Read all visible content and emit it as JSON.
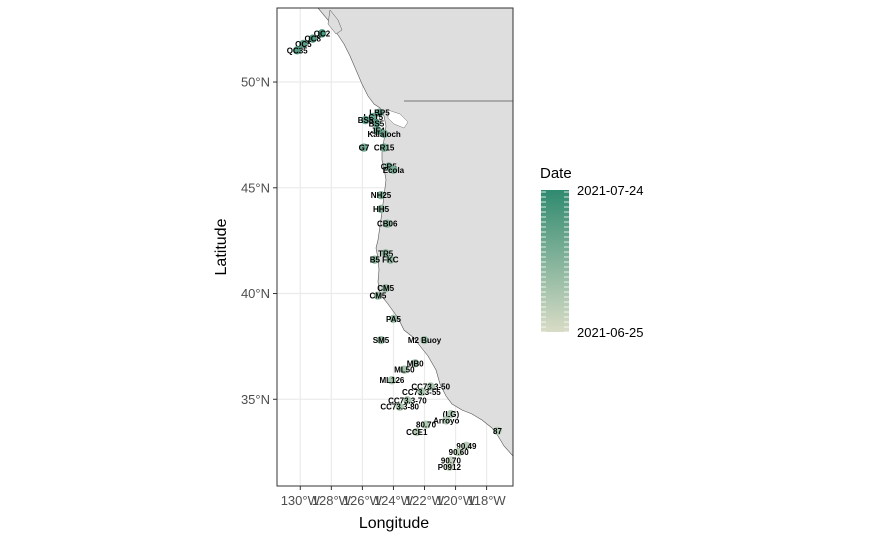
{
  "chart_data": {
    "type": "scatter",
    "xlabel": "Longitude",
    "ylabel": "Latitude",
    "xlim": [
      -131.5,
      -116.3
    ],
    "ylim": [
      30.9,
      53.5
    ],
    "x_ticks": [
      {
        "value": -130,
        "label": "130°W"
      },
      {
        "value": -128,
        "label": "128°W"
      },
      {
        "value": -126,
        "label": "126°W"
      },
      {
        "value": -124,
        "label": "124°W"
      },
      {
        "value": -122,
        "label": "122°W"
      },
      {
        "value": -120,
        "label": "120°W"
      },
      {
        "value": -118,
        "label": "118°W"
      }
    ],
    "y_ticks": [
      {
        "value": 35,
        "label": "35°N"
      },
      {
        "value": 40,
        "label": "40°N"
      },
      {
        "value": 45,
        "label": "45°N"
      },
      {
        "value": 50,
        "label": "50°N"
      }
    ],
    "grid": true,
    "land_color": "#dedede",
    "panel_border_color": "#333333",
    "gradient_low_color": "#d9dcc6",
    "gradient_high_color": "#2f8a6f",
    "legend": {
      "title": "Date",
      "placement": "right",
      "labels": [
        "2021-07-24",
        "2021-06-25"
      ]
    },
    "stations": [
      {
        "label": "QC2",
        "lon": -128.6,
        "lat": 52.3,
        "t": 0.9
      },
      {
        "label": "QC8",
        "lon": -129.2,
        "lat": 52.05,
        "t": 0.85
      },
      {
        "label": "QC5",
        "lon": -129.8,
        "lat": 51.8,
        "t": 0.8
      },
      {
        "label": "QC35",
        "lon": -130.2,
        "lat": 51.5,
        "t": 0.82
      },
      {
        "label": "LBP5",
        "lon": -124.9,
        "lat": 48.55,
        "t": 0.7
      },
      {
        "label": "LC15",
        "lon": -125.3,
        "lat": 48.35,
        "t": 0.72
      },
      {
        "label": "BS5",
        "lon": -125.8,
        "lat": 48.2,
        "t": 0.75
      },
      {
        "label": "BS5",
        "lon": -125.1,
        "lat": 48.05,
        "t": 0.74
      },
      {
        "label": "JF4",
        "lon": -125.0,
        "lat": 47.7,
        "t": 0.69
      },
      {
        "label": "Kalaloch",
        "lon": -124.6,
        "lat": 47.55,
        "t": 0.66
      },
      {
        "label": "G7",
        "lon": -125.9,
        "lat": 46.9,
        "t": 0.62
      },
      {
        "label": "CR15",
        "lon": -124.6,
        "lat": 46.9,
        "t": 0.64
      },
      {
        "label": "CR5",
        "lon": -124.3,
        "lat": 46.0,
        "t": 0.6
      },
      {
        "label": "Ecola",
        "lon": -124.0,
        "lat": 45.85,
        "t": 0.58
      },
      {
        "label": "NH25",
        "lon": -124.8,
        "lat": 44.65,
        "t": 0.55
      },
      {
        "label": "HH5",
        "lon": -124.8,
        "lat": 44.0,
        "t": 0.52
      },
      {
        "label": "CB06",
        "lon": -124.4,
        "lat": 43.3,
        "t": 0.5
      },
      {
        "label": "TR5",
        "lon": -124.5,
        "lat": 41.9,
        "t": 0.47
      },
      {
        "label": "B5",
        "lon": -125.2,
        "lat": 41.6,
        "t": 0.48
      },
      {
        "label": "FKC",
        "lon": -124.2,
        "lat": 41.6,
        "t": 0.45
      },
      {
        "label": "CM5",
        "lon": -124.5,
        "lat": 40.25,
        "t": 0.43
      },
      {
        "label": "CM5",
        "lon": -125.0,
        "lat": 39.9,
        "t": 0.42
      },
      {
        "label": "PA5",
        "lon": -124.0,
        "lat": 38.8,
        "t": 0.4
      },
      {
        "label": "SM5",
        "lon": -124.8,
        "lat": 37.8,
        "t": 0.38
      },
      {
        "label": "M2 Buoy",
        "lon": -122.0,
        "lat": 37.8,
        "t": 0.37
      },
      {
        "label": "MB0",
        "lon": -122.6,
        "lat": 36.7,
        "t": 0.35
      },
      {
        "label": "ML50",
        "lon": -123.3,
        "lat": 36.4,
        "t": 0.34
      },
      {
        "label": "ML126",
        "lon": -124.1,
        "lat": 35.9,
        "t": 0.33
      },
      {
        "label": "CC73.3-50",
        "lon": -121.6,
        "lat": 35.6,
        "t": 0.32
      },
      {
        "label": "CC73.3-55",
        "lon": -122.2,
        "lat": 35.35,
        "t": 0.31
      },
      {
        "label": "CC73.3-70",
        "lon": -123.1,
        "lat": 34.95,
        "t": 0.3
      },
      {
        "label": "CC73.3-80",
        "lon": -123.6,
        "lat": 34.65,
        "t": 0.29
      },
      {
        "label": "(LG)",
        "lon": -120.3,
        "lat": 34.3,
        "t": 0.28
      },
      {
        "label": "Arroyo",
        "lon": -120.6,
        "lat": 34.0,
        "t": 0.27
      },
      {
        "label": "80.70",
        "lon": -121.9,
        "lat": 33.8,
        "t": 0.26
      },
      {
        "label": "CCE1",
        "lon": -122.5,
        "lat": 33.45,
        "t": 0.25
      },
      {
        "label": "87",
        "lon": -117.3,
        "lat": 33.5,
        "t": 0.24
      },
      {
        "label": "90.49",
        "lon": -119.3,
        "lat": 32.8,
        "t": 0.22
      },
      {
        "label": "90.60",
        "lon": -119.8,
        "lat": 32.5,
        "t": 0.2
      },
      {
        "label": "90.70",
        "lon": -120.3,
        "lat": 32.1,
        "t": 0.15
      },
      {
        "label": "P0912",
        "lon": -120.4,
        "lat": 31.8,
        "t": 0.12
      }
    ]
  }
}
